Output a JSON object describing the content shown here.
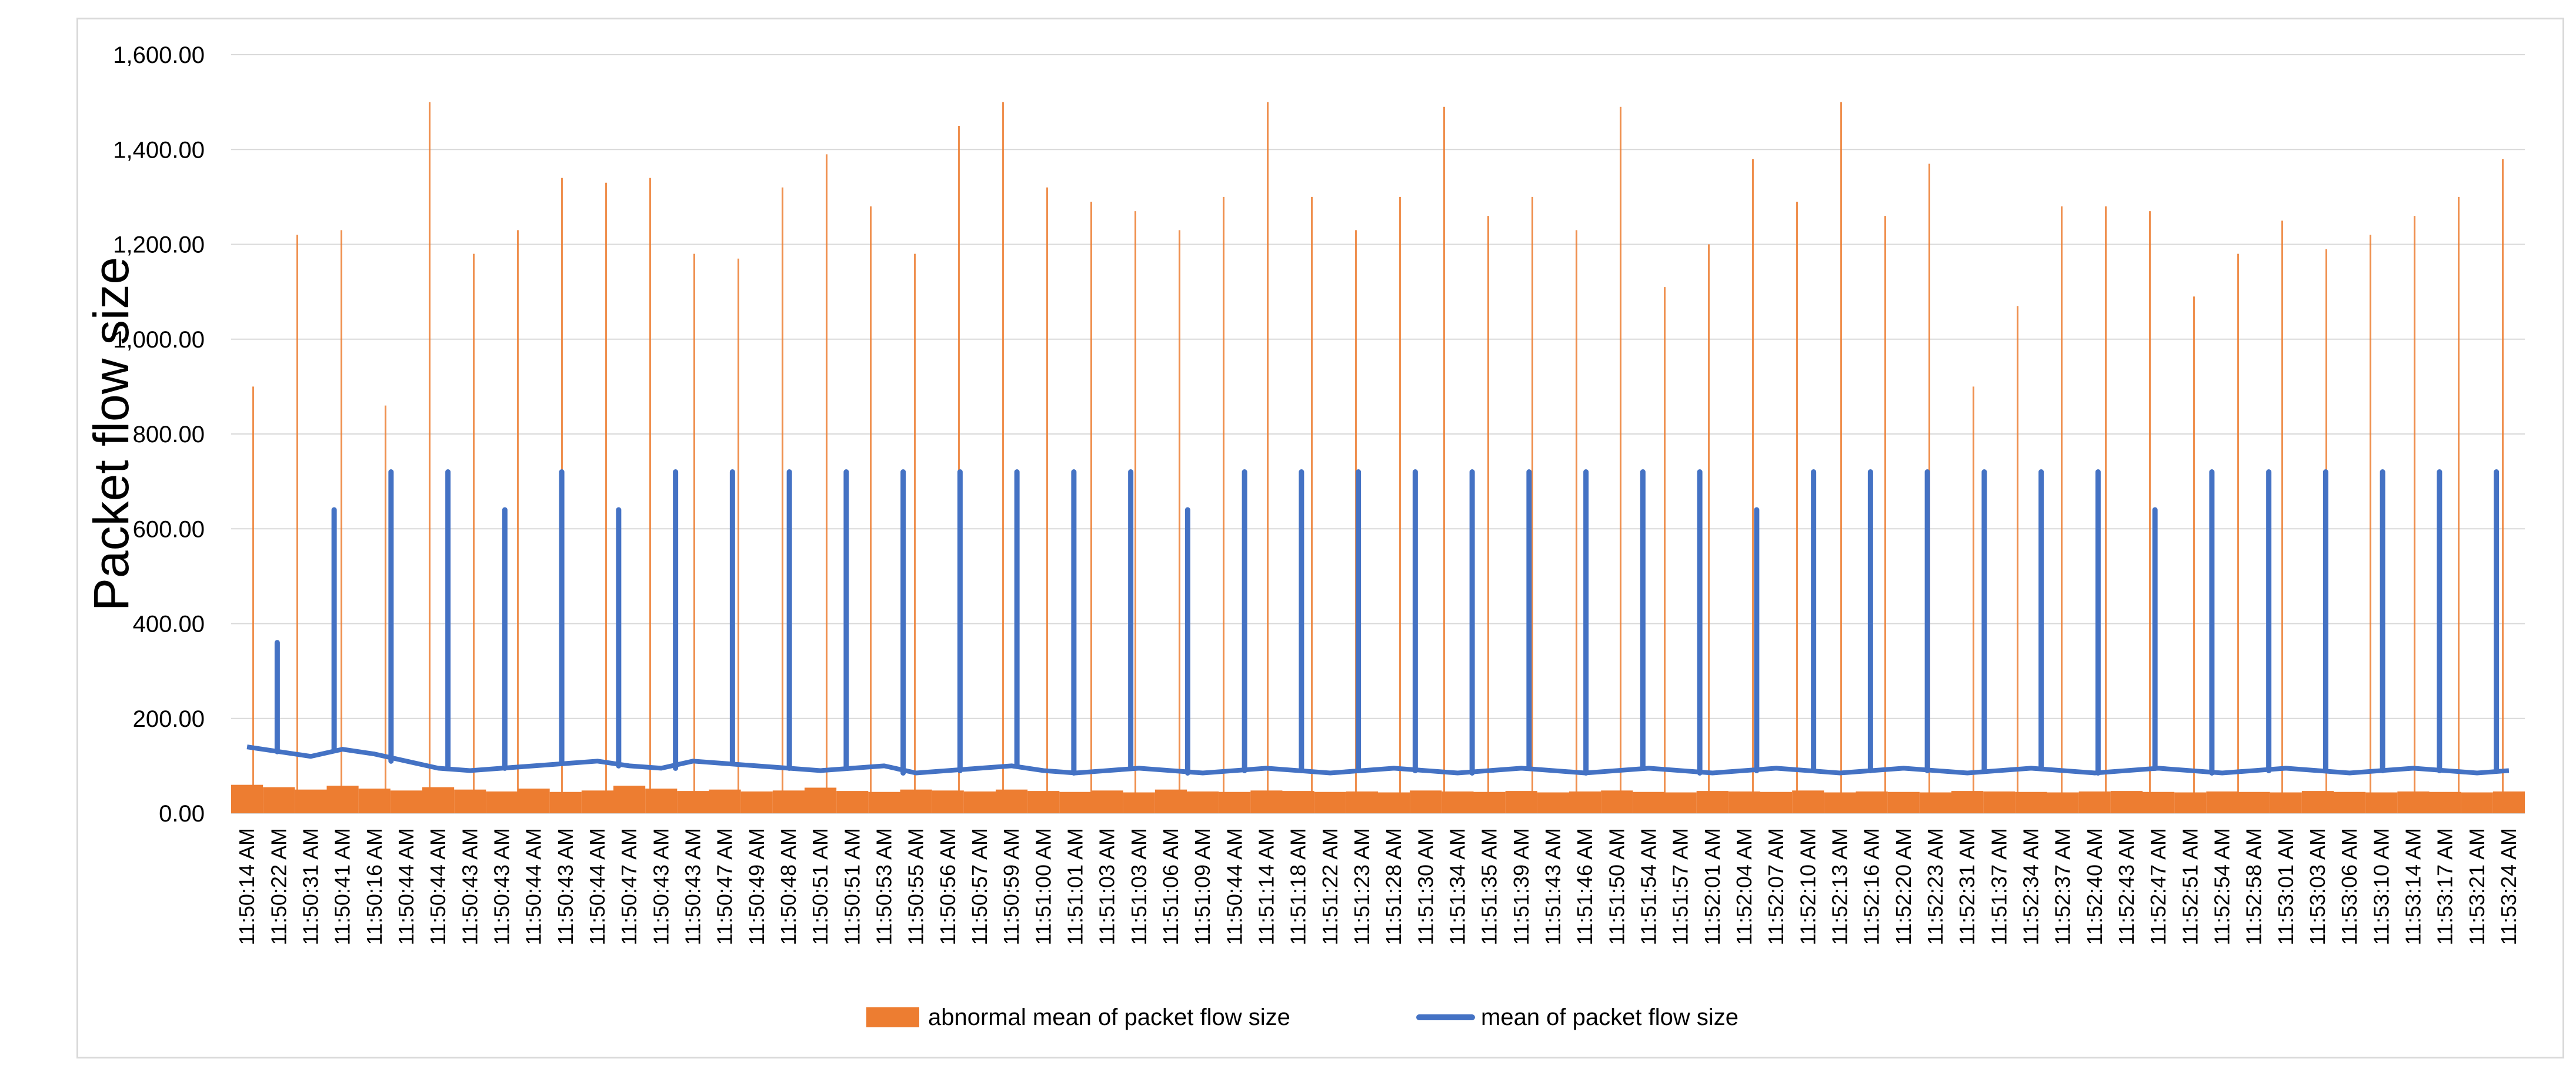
{
  "chart_data": {
    "type": "bar+line",
    "title": "",
    "xlabel": "",
    "ylabel": "Packet flow size",
    "ylim": [
      0,
      1600
    ],
    "yticks": [
      "0.00",
      "200.00",
      "400.00",
      "600.00",
      "800.00",
      "1,000.00",
      "1,200.00",
      "1,400.00",
      "1,600.00"
    ],
    "grid": true,
    "legend_position": "bottom",
    "x_tick_labels": [
      "11:50:14 AM",
      "11:50:22 AM",
      "11:50:31 AM",
      "11:50:41 AM",
      "11:50:16 AM",
      "11:50:44 AM",
      "11:50:44 AM",
      "11:50:43 AM",
      "11:50:43 AM",
      "11:50:44 AM",
      "11:50:43 AM",
      "11:50:44 AM",
      "11:50:47 AM",
      "11:50:43 AM",
      "11:50:43 AM",
      "11:50:47 AM",
      "11:50:49 AM",
      "11:50:48 AM",
      "11:50:51 AM",
      "11:50:51 AM",
      "11:50:53 AM",
      "11:50:55 AM",
      "11:50:56 AM",
      "11:50:57 AM",
      "11:50:59 AM",
      "11:51:00 AM",
      "11:51:01 AM",
      "11:51:03 AM",
      "11:51:03 AM",
      "11:51:06 AM",
      "11:51:09 AM",
      "11:50:44 AM",
      "11:51:14 AM",
      "11:51:18 AM",
      "11:51:22 AM",
      "11:51:23 AM",
      "11:51:28 AM",
      "11:51:30 AM",
      "11:51:34 AM",
      "11:51:35 AM",
      "11:51:39 AM",
      "11:51:43 AM",
      "11:51:46 AM",
      "11:51:50 AM",
      "11:51:54 AM",
      "11:51:57 AM",
      "11:52:01 AM",
      "11:52:04 AM",
      "11:52:07 AM",
      "11:52:10 AM",
      "11:52:13 AM",
      "11:52:16 AM",
      "11:52:20 AM",
      "11:52:23 AM",
      "11:52:31 AM",
      "11:51:37 AM",
      "11:52:34 AM",
      "11:52:37 AM",
      "11:52:40 AM",
      "11:52:43 AM",
      "11:52:47 AM",
      "11:52:51 AM",
      "11:52:54 AM",
      "11:52:58 AM",
      "11:53:01 AM",
      "11:53:03 AM",
      "11:53:06 AM",
      "11:53:10 AM",
      "11:53:14 AM",
      "11:53:17 AM",
      "11:53:21 AM",
      "11:53:24 AM"
    ],
    "series": [
      {
        "name": "abnormal mean of packet flow size",
        "kind": "bar",
        "color": "#ED7D31",
        "baseline_values": [
          60,
          55,
          50,
          58,
          52,
          48,
          55,
          50,
          46,
          52,
          45,
          48,
          58,
          52,
          47,
          50,
          46,
          48,
          54,
          47,
          45,
          50,
          48,
          46,
          50,
          47,
          45,
          48,
          44,
          50,
          46,
          45,
          48,
          47,
          45,
          46,
          44,
          48,
          46,
          45,
          47,
          44,
          46,
          48,
          45,
          44,
          47,
          46,
          45,
          48,
          44,
          46,
          45,
          44,
          47,
          46,
          45,
          44,
          46,
          47,
          45,
          44,
          46,
          45,
          44,
          47,
          45,
          44,
          46,
          45,
          44,
          46
        ],
        "spike_values": [
          900,
          1220,
          1230,
          860,
          1500,
          1180,
          1230,
          1340,
          1330,
          1340,
          1180,
          1170,
          1320,
          1390,
          1280,
          1180,
          1450,
          1500,
          1320,
          1290,
          1270,
          1230,
          1300,
          1500,
          1300,
          1230,
          1300,
          1490,
          1260,
          1300,
          1230,
          1490,
          1110,
          1200,
          1380,
          1290,
          1500,
          1260,
          1370,
          900,
          1070,
          1280,
          1280,
          1270,
          1090,
          1180,
          1250,
          1190,
          1220,
          1260,
          1300,
          1380
        ]
      },
      {
        "name": "mean of packet flow size",
        "kind": "line",
        "color": "#4472C4",
        "baseline_values": [
          140,
          130,
          120,
          135,
          125,
          110,
          95,
          90,
          95,
          100,
          105,
          110,
          100,
          95,
          110,
          105,
          100,
          95,
          90,
          95,
          100,
          85,
          90,
          95,
          100,
          90,
          85,
          90,
          95,
          90,
          85,
          90,
          95,
          90,
          85,
          90,
          95,
          90,
          85,
          90,
          95,
          90,
          85,
          90,
          95,
          90,
          85,
          90,
          95,
          90,
          85,
          90,
          95,
          90,
          85,
          90,
          95,
          90,
          85,
          90,
          95,
          90,
          85,
          90,
          95,
          90,
          85,
          90,
          95,
          90,
          85,
          90
        ],
        "peak_values": [
          360,
          640,
          720,
          720,
          640,
          720,
          640,
          720,
          720,
          720,
          720,
          720,
          720,
          720,
          720,
          720,
          640,
          720,
          720,
          720,
          720,
          720,
          720,
          720,
          720,
          720,
          640,
          720,
          720,
          720,
          720,
          720,
          720,
          640,
          720,
          720,
          720,
          720,
          720,
          720
        ]
      }
    ]
  }
}
